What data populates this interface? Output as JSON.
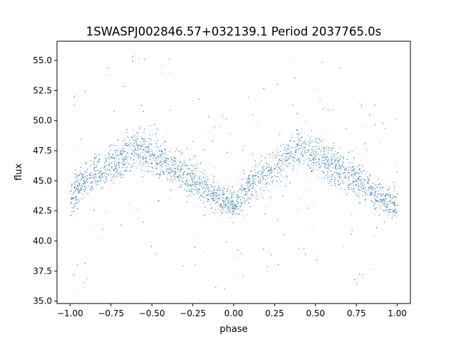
{
  "chart_data": {
    "type": "scatter",
    "title": "1SWASPJ002846.57+032139.1 Period 2037765.0s",
    "xlabel": "phase",
    "ylabel": "flux",
    "xlim": [
      -1.08,
      1.08
    ],
    "ylim": [
      34.8,
      56.6
    ],
    "xticks": [
      -1.0,
      -0.75,
      -0.5,
      -0.25,
      0.0,
      0.25,
      0.5,
      0.75,
      1.0
    ],
    "xtick_labels": [
      "−1.00",
      "−0.75",
      "−0.50",
      "−0.25",
      "0.00",
      "0.25",
      "0.50",
      "0.75",
      "1.00"
    ],
    "yticks": [
      35.0,
      37.5,
      40.0,
      42.5,
      45.0,
      47.5,
      50.0,
      52.5,
      55.0
    ],
    "ytick_labels": [
      "35.0",
      "37.5",
      "40.0",
      "42.5",
      "45.0",
      "47.5",
      "50.0",
      "52.5",
      "55.0"
    ],
    "grid": false,
    "marker_color": "#1f77b4",
    "series": [
      {
        "x": [
          -1.0,
          -0.95,
          -0.9,
          -0.85,
          -0.8,
          -0.75,
          -0.7,
          -0.65,
          -0.6,
          -0.55,
          -0.5,
          -0.45,
          -0.4,
          -0.35,
          -0.3,
          -0.25,
          -0.2,
          -0.15,
          -0.1,
          -0.05,
          0.0,
          0.05,
          0.1,
          0.15,
          0.2,
          0.25,
          0.3,
          0.35,
          0.4,
          0.45,
          0.5,
          0.55,
          0.6,
          0.65,
          0.7,
          0.75,
          0.8,
          0.85,
          0.9,
          0.95,
          1.0
        ],
        "y": [
          43.5,
          44.5,
          45.2,
          45.8,
          46.0,
          46.2,
          46.8,
          47.3,
          47.6,
          47.5,
          47.2,
          46.8,
          46.3,
          45.9,
          45.5,
          45.2,
          44.6,
          44.0,
          43.6,
          43.2,
          43.0,
          43.8,
          44.6,
          45.2,
          45.8,
          46.2,
          46.8,
          47.3,
          47.6,
          47.5,
          47.2,
          46.8,
          46.3,
          45.9,
          45.5,
          45.2,
          44.6,
          44.0,
          43.6,
          43.2,
          43.0
        ],
        "spread": [
          1.3,
          1.3,
          1.4,
          1.4,
          1.5,
          1.5,
          1.6,
          1.6,
          1.6,
          1.6,
          1.6,
          1.5,
          1.5,
          1.4,
          1.4,
          1.4,
          1.3,
          1.3,
          1.2,
          1.2,
          1.2,
          1.3,
          1.3,
          1.4,
          1.4,
          1.5,
          1.6,
          1.6,
          1.6,
          1.6,
          1.6,
          1.5,
          1.5,
          1.4,
          1.4,
          1.4,
          1.3,
          1.3,
          1.2,
          1.2,
          1.2
        ]
      }
    ]
  }
}
